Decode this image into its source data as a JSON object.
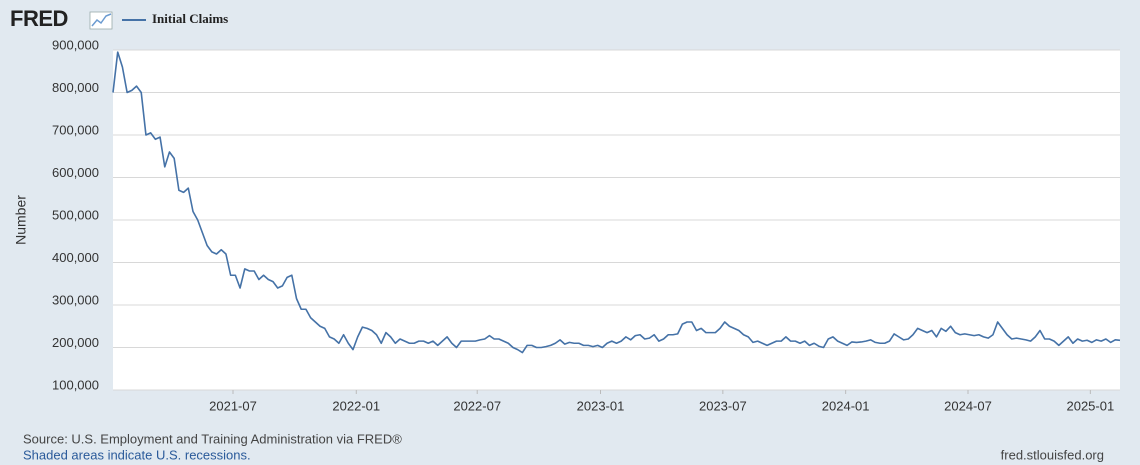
{
  "logo": "FRED",
  "chart_data": {
    "type": "line",
    "y_label": "Number",
    "series": [
      {
        "name": "Initial Claims",
        "color": "#4572a7",
        "values": [
          800000,
          895000,
          860000,
          800000,
          805000,
          815000,
          800000,
          700000,
          705000,
          690000,
          695000,
          625000,
          660000,
          645000,
          570000,
          565000,
          575000,
          520000,
          500000,
          470000,
          440000,
          425000,
          420000,
          430000,
          420000,
          370000,
          370000,
          340000,
          385000,
          380000,
          380000,
          360000,
          370000,
          360000,
          355000,
          340000,
          345000,
          365000,
          370000,
          315000,
          290000,
          290000,
          270000,
          260000,
          250000,
          245000,
          225000,
          220000,
          210000,
          230000,
          210000,
          195000,
          225000,
          248000,
          245000,
          240000,
          230000,
          210000,
          235000,
          225000,
          210000,
          220000,
          215000,
          210000,
          210000,
          215000,
          215000,
          210000,
          215000,
          205000,
          215000,
          225000,
          210000,
          200000,
          215000,
          215000,
          215000,
          215000,
          218000,
          220000,
          228000,
          220000,
          220000,
          215000,
          210000,
          200000,
          195000,
          188000,
          205000,
          205000,
          200000,
          200000,
          202000,
          205000,
          210000,
          218000,
          208000,
          212000,
          210000,
          210000,
          205000,
          205000,
          202000,
          205000,
          200000,
          210000,
          215000,
          210000,
          215000,
          225000,
          218000,
          228000,
          230000,
          220000,
          222000,
          230000,
          215000,
          220000,
          230000,
          230000,
          232000,
          255000,
          260000,
          260000,
          240000,
          245000,
          235000,
          235000,
          235000,
          245000,
          260000,
          250000,
          245000,
          240000,
          230000,
          225000,
          212000,
          215000,
          210000,
          205000,
          210000,
          215000,
          215000,
          225000,
          215000,
          215000,
          210000,
          215000,
          205000,
          210000,
          203000,
          200000,
          220000,
          225000,
          215000,
          210000,
          205000,
          213000,
          212000,
          213000,
          215000,
          218000,
          212000,
          210000,
          210000,
          215000,
          232000,
          225000,
          218000,
          220000,
          230000,
          245000,
          240000,
          235000,
          240000,
          225000,
          245000,
          238000,
          250000,
          235000,
          230000,
          232000,
          230000,
          228000,
          230000,
          225000,
          222000,
          230000,
          260000,
          245000,
          230000,
          220000,
          222000,
          220000,
          218000,
          215000,
          225000,
          240000,
          220000,
          220000,
          215000,
          205000,
          215000,
          225000,
          210000,
          220000,
          215000,
          217000,
          212000,
          218000,
          215000,
          220000,
          212000,
          218000,
          217000
        ]
      }
    ],
    "xlim": [
      0,
      214
    ],
    "xticks": [
      {
        "value": 25.5,
        "label": "2021-07"
      },
      {
        "value": 51.7,
        "label": "2022-01"
      },
      {
        "value": 77.4,
        "label": "2022-07"
      },
      {
        "value": 103.6,
        "label": "2023-01"
      },
      {
        "value": 129.6,
        "label": "2023-07"
      },
      {
        "value": 155.7,
        "label": "2024-01"
      },
      {
        "value": 181.7,
        "label": "2024-07"
      },
      {
        "value": 207.7,
        "label": "2025-01"
      }
    ],
    "ylim": [
      100000,
      900000
    ],
    "yticks": [
      {
        "value": 100000,
        "label": "100,000"
      },
      {
        "value": 200000,
        "label": "200,000"
      },
      {
        "value": 300000,
        "label": "300,000"
      },
      {
        "value": 400000,
        "label": "400,000"
      },
      {
        "value": 500000,
        "label": "500,000"
      },
      {
        "value": 600000,
        "label": "600,000"
      },
      {
        "value": 700000,
        "label": "700,000"
      },
      {
        "value": 800000,
        "label": "800,000"
      },
      {
        "value": 900000,
        "label": "900,000"
      }
    ],
    "grid": true
  },
  "footer": {
    "source": "Source: U.S. Employment and Training Administration via FRED®",
    "note": "Shaded areas indicate U.S. recessions.",
    "url": "fred.stlouisfed.org"
  }
}
